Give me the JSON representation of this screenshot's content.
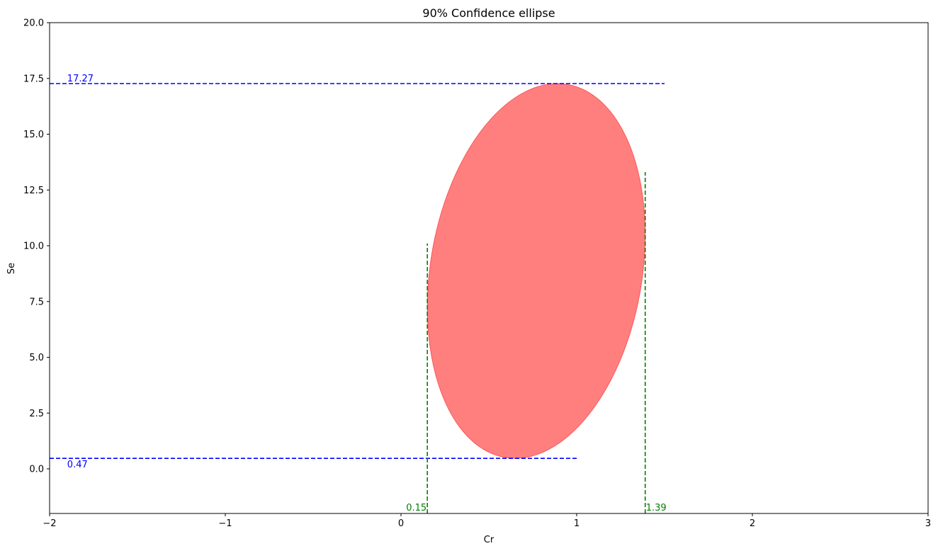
{
  "chart_data": {
    "type": "scatter",
    "title": "90% Confidence ellipse",
    "xlabel": "Cr",
    "ylabel": "Se",
    "xlim": [
      -2,
      3
    ],
    "ylim": [
      -2,
      20
    ],
    "xticks": [
      -2,
      -1,
      0,
      1,
      2,
      3
    ],
    "xtick_labels": [
      "−2",
      "−1",
      "0",
      "1",
      "2",
      "3"
    ],
    "yticks": [
      0,
      2.5,
      5,
      7.5,
      10,
      12.5,
      15,
      17.5,
      20
    ],
    "ytick_labels": [
      "0.0",
      "2.5",
      "5.0",
      "7.5",
      "10.0",
      "12.5",
      "15.0",
      "17.5",
      "20.0"
    ],
    "grid": false,
    "ellipse": {
      "center": [
        0.77,
        8.87
      ],
      "cr_range": [
        0.15,
        1.39
      ],
      "se_range": [
        0.47,
        17.27
      ],
      "cr_at_se_max": 0.89,
      "cr_at_se_min": 0.64,
      "color": "#ff0000",
      "alpha": 0.5
    },
    "hlines": [
      {
        "y": 17.27,
        "x_range": [
          -2,
          1.5
        ],
        "label": "17.27",
        "color": "#0000ff",
        "label_x": -1.9,
        "label_pos": "above"
      },
      {
        "y": 0.47,
        "x_range": [
          -2,
          1.0
        ],
        "label": "0.47",
        "color": "#0000ff",
        "label_x": -1.9,
        "label_pos": "below"
      }
    ],
    "vlines": [
      {
        "x": 0.15,
        "y_range": [
          -2,
          10.1
        ],
        "label": "0.15",
        "color": "#008000",
        "label_pos": "left"
      },
      {
        "x": 1.39,
        "y_range": [
          -2,
          13.3
        ],
        "label": "1.39",
        "color": "#008000",
        "label_pos": "right"
      }
    ]
  }
}
